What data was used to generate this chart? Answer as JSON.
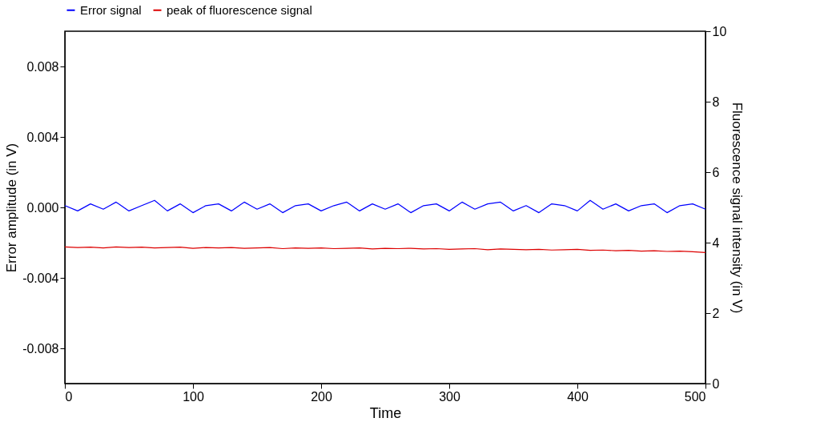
{
  "chart_data": {
    "type": "line",
    "xlabel": "Time",
    "ylabel": "Error amplitude (in V)",
    "y2label": "Fluorescence signal intensity (in V)",
    "x": [
      0,
      10,
      20,
      30,
      40,
      50,
      60,
      70,
      80,
      90,
      100,
      110,
      120,
      130,
      140,
      150,
      160,
      170,
      180,
      190,
      200,
      210,
      220,
      230,
      240,
      250,
      260,
      270,
      280,
      290,
      300,
      310,
      320,
      330,
      340,
      350,
      360,
      370,
      380,
      390,
      400,
      410,
      420,
      430,
      440,
      450,
      460,
      470,
      480,
      490,
      500
    ],
    "xlim": [
      0,
      500
    ],
    "xticks": [
      0,
      100,
      200,
      300,
      400,
      500
    ],
    "ylim": [
      -0.01,
      0.01
    ],
    "yticks": [
      -0.008,
      -0.004,
      {
        "value": 0,
        "label": "0.000"
      },
      0.004,
      0.008
    ],
    "y2lim": [
      0,
      10
    ],
    "y2ticks": [
      0,
      2,
      4,
      6,
      8,
      10
    ],
    "grid": false,
    "legend": "top",
    "line_style": "solid",
    "marker": "none",
    "series": [
      {
        "name": "Error signal",
        "color": "#0000ff",
        "values": [
          0.0001,
          -0.0002,
          0.0002,
          -0.0001,
          0.0003,
          -0.0002,
          0.0001,
          0.0004,
          -0.0002,
          0.0002,
          -0.0003,
          0.0001,
          0.0002,
          -0.0002,
          0.0003,
          -0.0001,
          0.0002,
          -0.0003,
          0.0001,
          0.0002,
          -0.0002,
          0.0001,
          0.0003,
          -0.0002,
          0.0002,
          -0.0001,
          0.0002,
          -0.0003,
          0.0001,
          0.0002,
          -0.0002,
          0.0003,
          -0.0001,
          0.0002,
          0.0003,
          -0.0002,
          0.0001,
          -0.0003,
          0.0002,
          0.0001,
          -0.0002,
          0.0004,
          -0.0001,
          0.0002,
          -0.0002,
          0.0001,
          0.0002,
          -0.0003,
          0.0001,
          0.0002,
          -0.0001
        ]
      },
      {
        "name": "peak of fluorescence signal",
        "color": "#dd0000",
        "axis": "y2",
        "values": [
          3.88,
          3.86,
          3.87,
          3.85,
          3.88,
          3.86,
          3.87,
          3.85,
          3.86,
          3.87,
          3.84,
          3.86,
          3.85,
          3.86,
          3.84,
          3.85,
          3.86,
          3.83,
          3.85,
          3.84,
          3.85,
          3.83,
          3.84,
          3.85,
          3.82,
          3.84,
          3.83,
          3.84,
          3.82,
          3.83,
          3.81,
          3.82,
          3.83,
          3.8,
          3.82,
          3.81,
          3.8,
          3.81,
          3.79,
          3.8,
          3.81,
          3.78,
          3.79,
          3.77,
          3.78,
          3.76,
          3.77,
          3.75,
          3.76,
          3.74,
          3.72
        ]
      }
    ]
  }
}
